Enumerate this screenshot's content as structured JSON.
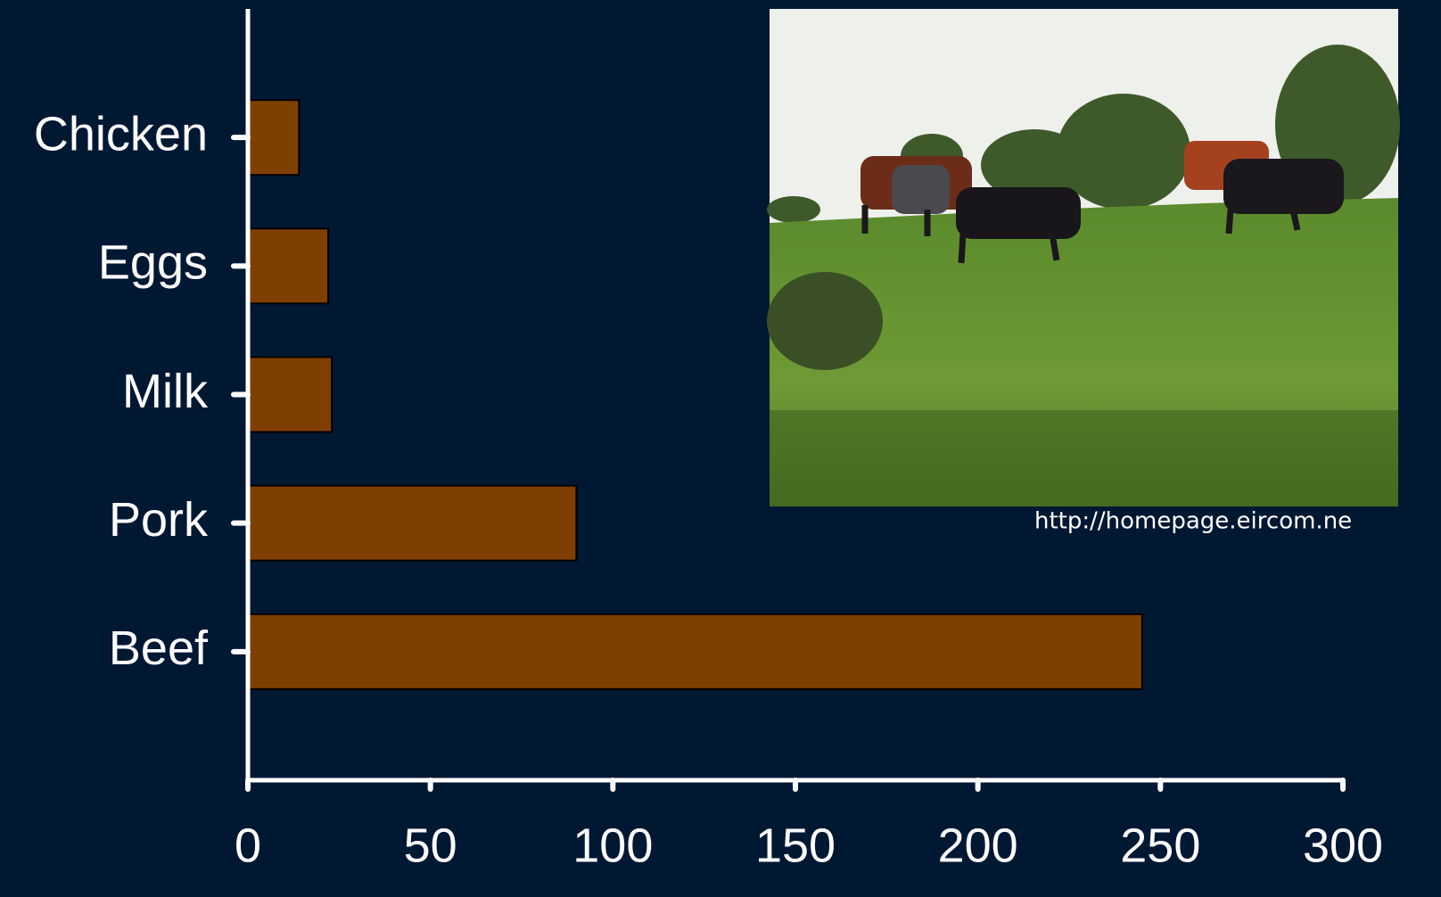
{
  "chart_data": {
    "type": "bar",
    "orientation": "horizontal",
    "categories": [
      "Chicken",
      "Eggs",
      "Milk",
      "Pork",
      "Beef"
    ],
    "values": [
      14,
      22,
      23,
      90,
      245
    ],
    "color": "#7f3f00",
    "xlim": [
      0,
      300
    ],
    "xticks": [
      0,
      50,
      100,
      150,
      200,
      250,
      300
    ],
    "annotation": "http://homepage.eircom.ne"
  }
}
